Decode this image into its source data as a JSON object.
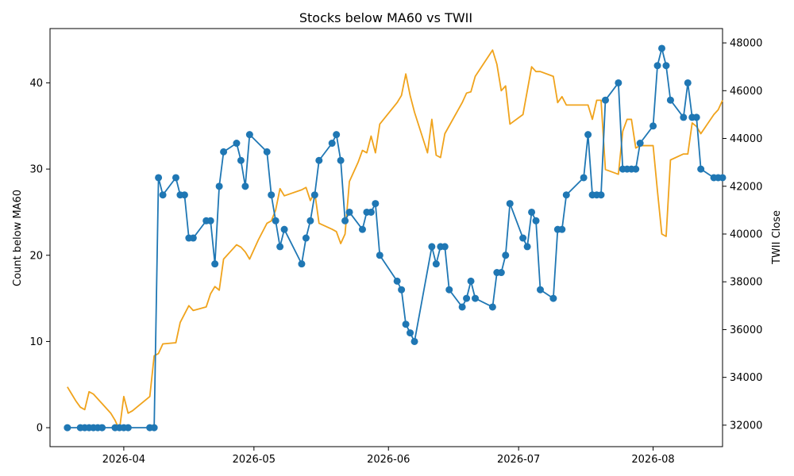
{
  "chart_data": {
    "type": "line",
    "title": "Stocks below MA60 vs TWII",
    "xlabel": "",
    "ylabel_left": "Count below MA60",
    "ylabel_right": "TWII Close",
    "x_ticks": [
      "2026-04",
      "2026-05",
      "2026-06",
      "2026-07",
      "2026-08"
    ],
    "y_left_ticks": [
      "0",
      "10",
      "20",
      "30",
      "40"
    ],
    "y_right_ticks": [
      "32000",
      "34000",
      "36000",
      "38000",
      "40000",
      "42000",
      "44000",
      "46000",
      "48000"
    ],
    "y_left_range": [
      -2.2,
      46.3
    ],
    "y_right_range": [
      31100,
      48600
    ],
    "x_range": [
      "2026-03-15",
      "2026-08-17"
    ],
    "grid": false,
    "series": [
      {
        "name": "",
        "axis": "left",
        "color": "#1f77b4",
        "marker": "circle",
        "points": [
          [
            "2026-03-19",
            0
          ],
          [
            "2026-03-22",
            0
          ],
          [
            "2026-03-23",
            0
          ],
          [
            "2026-03-24",
            0
          ],
          [
            "2026-03-25",
            0
          ],
          [
            "2026-03-26",
            0
          ],
          [
            "2026-03-27",
            0
          ],
          [
            "2026-03-30",
            0
          ],
          [
            "2026-03-31",
            0
          ],
          [
            "2026-04-01",
            0
          ],
          [
            "2026-04-02",
            0
          ],
          [
            "2026-04-07",
            0
          ],
          [
            "2026-04-08",
            0
          ],
          [
            "2026-04-09",
            29
          ],
          [
            "2026-04-10",
            27
          ],
          [
            "2026-04-13",
            29
          ],
          [
            "2026-04-14",
            27
          ],
          [
            "2026-04-15",
            27
          ],
          [
            "2026-04-16",
            22
          ],
          [
            "2026-04-17",
            22
          ],
          [
            "2026-04-20",
            24
          ],
          [
            "2026-04-21",
            24
          ],
          [
            "2026-04-22",
            19
          ],
          [
            "2026-04-23",
            28
          ],
          [
            "2026-04-24",
            32
          ],
          [
            "2026-04-27",
            33
          ],
          [
            "2026-04-28",
            31
          ],
          [
            "2026-04-29",
            28
          ],
          [
            "2026-04-30",
            34
          ],
          [
            "2026-05-04",
            32
          ],
          [
            "2026-05-05",
            27
          ],
          [
            "2026-05-06",
            24
          ],
          [
            "2026-05-07",
            21
          ],
          [
            "2026-05-08",
            23
          ],
          [
            "2026-05-12",
            19
          ],
          [
            "2026-05-13",
            22
          ],
          [
            "2026-05-14",
            24
          ],
          [
            "2026-05-15",
            27
          ],
          [
            "2026-05-16",
            31
          ],
          [
            "2026-05-19",
            33
          ],
          [
            "2026-05-20",
            34
          ],
          [
            "2026-05-21",
            31
          ],
          [
            "2026-05-22",
            24
          ],
          [
            "2026-05-23",
            25
          ],
          [
            "2026-05-26",
            23
          ],
          [
            "2026-05-27",
            25
          ],
          [
            "2026-05-28",
            25
          ],
          [
            "2026-05-29",
            26
          ],
          [
            "2026-05-30",
            20
          ],
          [
            "2026-06-03",
            17
          ],
          [
            "2026-06-04",
            16
          ],
          [
            "2026-06-05",
            12
          ],
          [
            "2026-06-06",
            11
          ],
          [
            "2026-06-07",
            10
          ],
          [
            "2026-06-11",
            21
          ],
          [
            "2026-06-12",
            19
          ],
          [
            "2026-06-13",
            21
          ],
          [
            "2026-06-14",
            21
          ],
          [
            "2026-06-15",
            16
          ],
          [
            "2026-06-18",
            14
          ],
          [
            "2026-06-19",
            15
          ],
          [
            "2026-06-20",
            17
          ],
          [
            "2026-06-21",
            15
          ],
          [
            "2026-06-25",
            14
          ],
          [
            "2026-06-26",
            18
          ],
          [
            "2026-06-27",
            18
          ],
          [
            "2026-06-28",
            20
          ],
          [
            "2026-06-29",
            26
          ],
          [
            "2026-07-02",
            22
          ],
          [
            "2026-07-03",
            21
          ],
          [
            "2026-07-04",
            25
          ],
          [
            "2026-07-05",
            24
          ],
          [
            "2026-07-06",
            16
          ],
          [
            "2026-07-09",
            15
          ],
          [
            "2026-07-10",
            23
          ],
          [
            "2026-07-11",
            23
          ],
          [
            "2026-07-12",
            27
          ],
          [
            "2026-07-16",
            29
          ],
          [
            "2026-07-17",
            34
          ],
          [
            "2026-07-18",
            27
          ],
          [
            "2026-07-19",
            27
          ],
          [
            "2026-07-20",
            27
          ],
          [
            "2026-07-21",
            38
          ],
          [
            "2026-07-24",
            40
          ],
          [
            "2026-07-25",
            30
          ],
          [
            "2026-07-26",
            30
          ],
          [
            "2026-07-27",
            30
          ],
          [
            "2026-07-28",
            30
          ],
          [
            "2026-07-29",
            33
          ],
          [
            "2026-08-01",
            35
          ],
          [
            "2026-08-02",
            42
          ],
          [
            "2026-08-03",
            44
          ],
          [
            "2026-08-04",
            42
          ],
          [
            "2026-08-05",
            38
          ],
          [
            "2026-08-08",
            36
          ],
          [
            "2026-08-09",
            40
          ],
          [
            "2026-08-10",
            36
          ],
          [
            "2026-08-11",
            36
          ],
          [
            "2026-08-12",
            30
          ],
          [
            "2026-08-15",
            29
          ],
          [
            "2026-08-16",
            29
          ],
          [
            "2026-08-17",
            29
          ]
        ]
      },
      {
        "name": "",
        "axis": "right",
        "color": "#f0a31c",
        "marker": "none",
        "points": [
          [
            "2026-03-19",
            33600
          ],
          [
            "2026-03-20",
            33300
          ],
          [
            "2026-03-21",
            33000
          ],
          [
            "2026-03-22",
            32750
          ],
          [
            "2026-03-23",
            32650
          ],
          [
            "2026-03-24",
            33400
          ],
          [
            "2026-03-25",
            33300
          ],
          [
            "2026-03-26",
            33100
          ],
          [
            "2026-03-27",
            32900
          ],
          [
            "2026-03-29",
            32500
          ],
          [
            "2026-03-30",
            32200
          ],
          [
            "2026-03-31",
            31800
          ],
          [
            "2026-04-01",
            33200
          ],
          [
            "2026-04-02",
            32500
          ],
          [
            "2026-04-03",
            32600
          ],
          [
            "2026-04-07",
            33200
          ],
          [
            "2026-04-08",
            34900
          ],
          [
            "2026-04-09",
            35000
          ],
          [
            "2026-04-10",
            35400
          ],
          [
            "2026-04-13",
            35450
          ],
          [
            "2026-04-14",
            36300
          ],
          [
            "2026-04-16",
            37000
          ],
          [
            "2026-04-17",
            36800
          ],
          [
            "2026-04-20",
            36950
          ],
          [
            "2026-04-21",
            37500
          ],
          [
            "2026-04-22",
            37800
          ],
          [
            "2026-04-23",
            37650
          ],
          [
            "2026-04-24",
            38950
          ],
          [
            "2026-04-26",
            39350
          ],
          [
            "2026-04-27",
            39550
          ],
          [
            "2026-04-28",
            39450
          ],
          [
            "2026-04-29",
            39250
          ],
          [
            "2026-04-30",
            38950
          ],
          [
            "2026-05-02",
            39750
          ],
          [
            "2026-05-04",
            40450
          ],
          [
            "2026-05-05",
            40550
          ],
          [
            "2026-05-06",
            41000
          ],
          [
            "2026-05-07",
            41900
          ],
          [
            "2026-05-08",
            41600
          ],
          [
            "2026-05-12",
            41850
          ],
          [
            "2026-05-13",
            41950
          ],
          [
            "2026-05-14",
            41400
          ],
          [
            "2026-05-15",
            41750
          ],
          [
            "2026-05-16",
            40450
          ],
          [
            "2026-05-19",
            40200
          ],
          [
            "2026-05-20",
            40100
          ],
          [
            "2026-05-21",
            39600
          ],
          [
            "2026-05-22",
            40000
          ],
          [
            "2026-05-23",
            42200
          ],
          [
            "2026-05-25",
            43000
          ],
          [
            "2026-05-26",
            43500
          ],
          [
            "2026-05-27",
            43400
          ],
          [
            "2026-05-28",
            44100
          ],
          [
            "2026-05-29",
            43400
          ],
          [
            "2026-05-30",
            44600
          ],
          [
            "2026-06-03",
            45500
          ],
          [
            "2026-06-04",
            45800
          ],
          [
            "2026-06-05",
            46700
          ],
          [
            "2026-06-06",
            45800
          ],
          [
            "2026-06-07",
            45100
          ],
          [
            "2026-06-10",
            43400
          ],
          [
            "2026-06-11",
            44800
          ],
          [
            "2026-06-12",
            43300
          ],
          [
            "2026-06-13",
            43200
          ],
          [
            "2026-06-14",
            44200
          ],
          [
            "2026-06-18",
            45500
          ],
          [
            "2026-06-19",
            45900
          ],
          [
            "2026-06-20",
            45950
          ],
          [
            "2026-06-21",
            46600
          ],
          [
            "2026-06-25",
            47700
          ],
          [
            "2026-06-26",
            47100
          ],
          [
            "2026-06-27",
            46000
          ],
          [
            "2026-06-28",
            46200
          ],
          [
            "2026-06-29",
            44600
          ],
          [
            "2026-07-02",
            45000
          ],
          [
            "2026-07-03",
            46000
          ],
          [
            "2026-07-04",
            47000
          ],
          [
            "2026-07-05",
            46800
          ],
          [
            "2026-07-06",
            46800
          ],
          [
            "2026-07-09",
            46600
          ],
          [
            "2026-07-10",
            45500
          ],
          [
            "2026-07-11",
            45750
          ],
          [
            "2026-07-12",
            45400
          ],
          [
            "2026-07-17",
            45400
          ],
          [
            "2026-07-18",
            44800
          ],
          [
            "2026-07-19",
            45600
          ],
          [
            "2026-07-20",
            45600
          ],
          [
            "2026-07-21",
            42700
          ],
          [
            "2026-07-24",
            42500
          ],
          [
            "2026-07-25",
            44300
          ],
          [
            "2026-07-26",
            44800
          ],
          [
            "2026-07-27",
            44800
          ],
          [
            "2026-07-28",
            43600
          ],
          [
            "2026-07-29",
            43700
          ],
          [
            "2026-08-01",
            43700
          ],
          [
            "2026-08-02",
            41800
          ],
          [
            "2026-08-03",
            40000
          ],
          [
            "2026-08-04",
            39900
          ],
          [
            "2026-08-05",
            43100
          ],
          [
            "2026-08-08",
            43350
          ],
          [
            "2026-08-09",
            43350
          ],
          [
            "2026-08-10",
            44650
          ],
          [
            "2026-08-11",
            44500
          ],
          [
            "2026-08-12",
            44200
          ],
          [
            "2026-08-15",
            45000
          ],
          [
            "2026-08-16",
            45200
          ],
          [
            "2026-08-17",
            45600
          ]
        ]
      }
    ]
  }
}
